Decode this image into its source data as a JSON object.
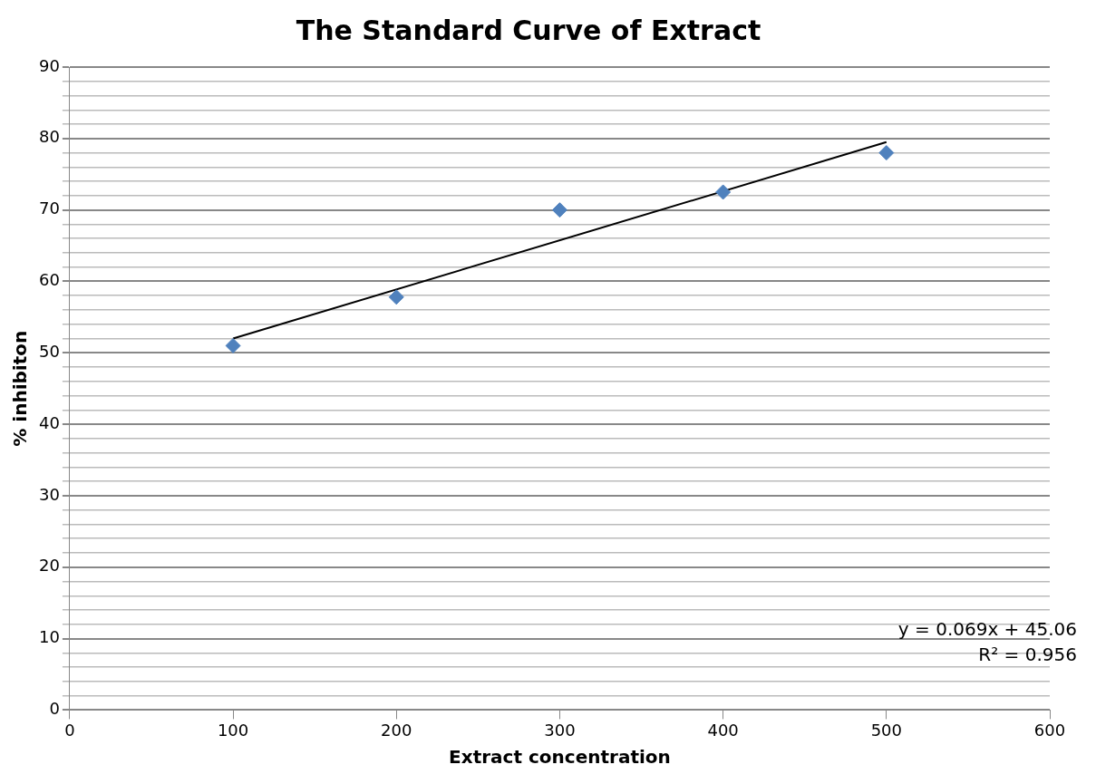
{
  "chart_data": {
    "type": "scatter",
    "title": "The Standard Curve of Extract",
    "xlabel": "Extract concentration",
    "ylabel": "% inhibiton",
    "xlim": [
      0,
      600
    ],
    "xticks": [
      0,
      100,
      200,
      300,
      400,
      500,
      600
    ],
    "ylim": [
      0,
      90
    ],
    "yticks": [
      0,
      {
        "value": 2,
        "label": null
      },
      {
        "value": 4,
        "label": null
      },
      {
        "value": 6,
        "label": null
      },
      {
        "value": 8,
        "label": null
      },
      10,
      {
        "value": 12,
        "label": null
      },
      {
        "value": 14,
        "label": null
      },
      {
        "value": 16,
        "label": null
      },
      {
        "value": 18,
        "label": null
      },
      20,
      {
        "value": 22,
        "label": null
      },
      {
        "value": 24,
        "label": null
      },
      {
        "value": 26,
        "label": null
      },
      {
        "value": 28,
        "label": null
      },
      30,
      {
        "value": 32,
        "label": null
      },
      {
        "value": 34,
        "label": null
      },
      {
        "value": 36,
        "label": null
      },
      {
        "value": 38,
        "label": null
      },
      40,
      {
        "value": 42,
        "label": null
      },
      {
        "value": 44,
        "label": null
      },
      {
        "value": 46,
        "label": null
      },
      {
        "value": 48,
        "label": null
      },
      50,
      {
        "value": 52,
        "label": null
      },
      {
        "value": 54,
        "label": null
      },
      {
        "value": 56,
        "label": null
      },
      {
        "value": 58,
        "label": null
      },
      60,
      {
        "value": 62,
        "label": null
      },
      {
        "value": 64,
        "label": null
      },
      {
        "value": 66,
        "label": null
      },
      {
        "value": 68,
        "label": null
      },
      70,
      {
        "value": 72,
        "label": null
      },
      {
        "value": 74,
        "label": null
      },
      {
        "value": 76,
        "label": null
      },
      {
        "value": 78,
        "label": null
      },
      80,
      {
        "value": 82,
        "label": null
      },
      {
        "value": 84,
        "label": null
      },
      {
        "value": 86,
        "label": null
      },
      {
        "value": 88,
        "label": null
      },
      90
    ],
    "grid": "y",
    "series": [
      {
        "type": "scatter",
        "color": "#4f81bd",
        "marker": "diamond",
        "x": [
          100,
          200,
          300,
          400,
          500
        ],
        "values": [
          51,
          57.8,
          70,
          72.5,
          78
        ]
      },
      {
        "type": "line",
        "color": "#000000",
        "marker": "none",
        "line_style": "solid",
        "x": [
          100,
          500
        ],
        "values": [
          52.0,
          79.5
        ]
      }
    ],
    "annotations": [
      "y = 0.069x + 45.06",
      "R² = 0.956"
    ]
  }
}
